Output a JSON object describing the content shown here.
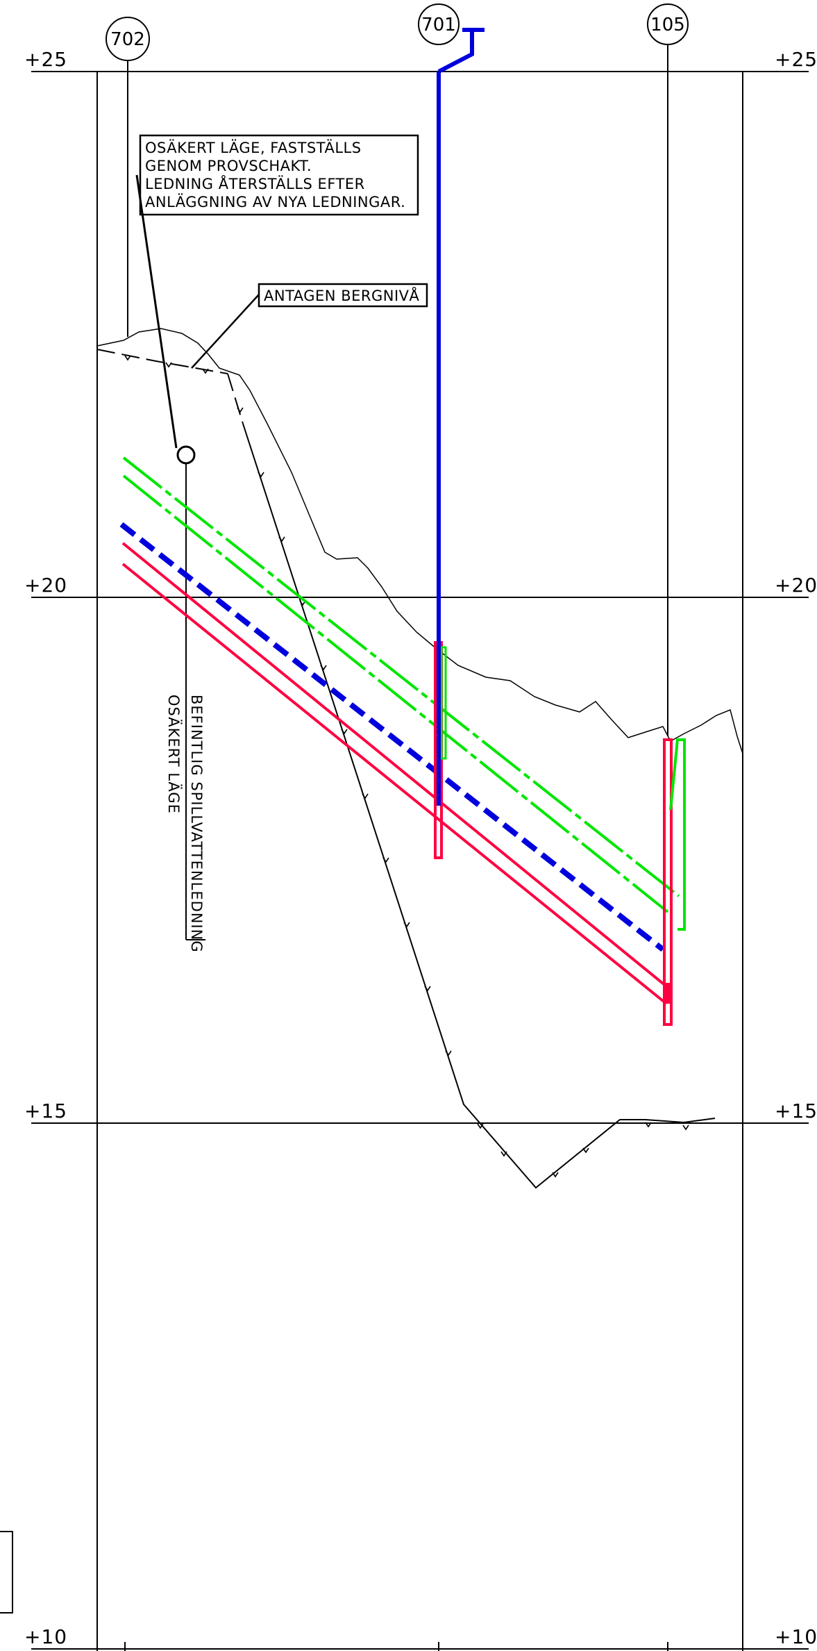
{
  "levels": [
    {
      "id": "plus25",
      "label": "+25"
    },
    {
      "id": "plus20",
      "label": "+20"
    },
    {
      "id": "plus15",
      "label": "+15"
    },
    {
      "id": "plus10",
      "label": "+10"
    }
  ],
  "manholes": [
    {
      "id": "702",
      "label": "702"
    },
    {
      "id": "701",
      "label": "701"
    },
    {
      "id": "105",
      "label": "105"
    }
  ],
  "notes": {
    "uncertain_position": [
      "OSÄKERT LÄGE, FASTSTÄLLS",
      "GENOM PROVSCHAKT.",
      "LEDNING ÅTERSTÄLLS EFTER",
      "ANLÄGGNING AV NYA LEDNINGAR."
    ],
    "bedrock": "ANTAGEN BERGNIVÅ",
    "existing_pipe": [
      "BEFINTLIG SPILLVATTENLEDNING",
      "OSÄKERT LÄGE"
    ]
  },
  "colors": {
    "ink": "#000000",
    "stormwater": "#00e600",
    "sewer": "#0000dd",
    "water": "#ff0040"
  }
}
